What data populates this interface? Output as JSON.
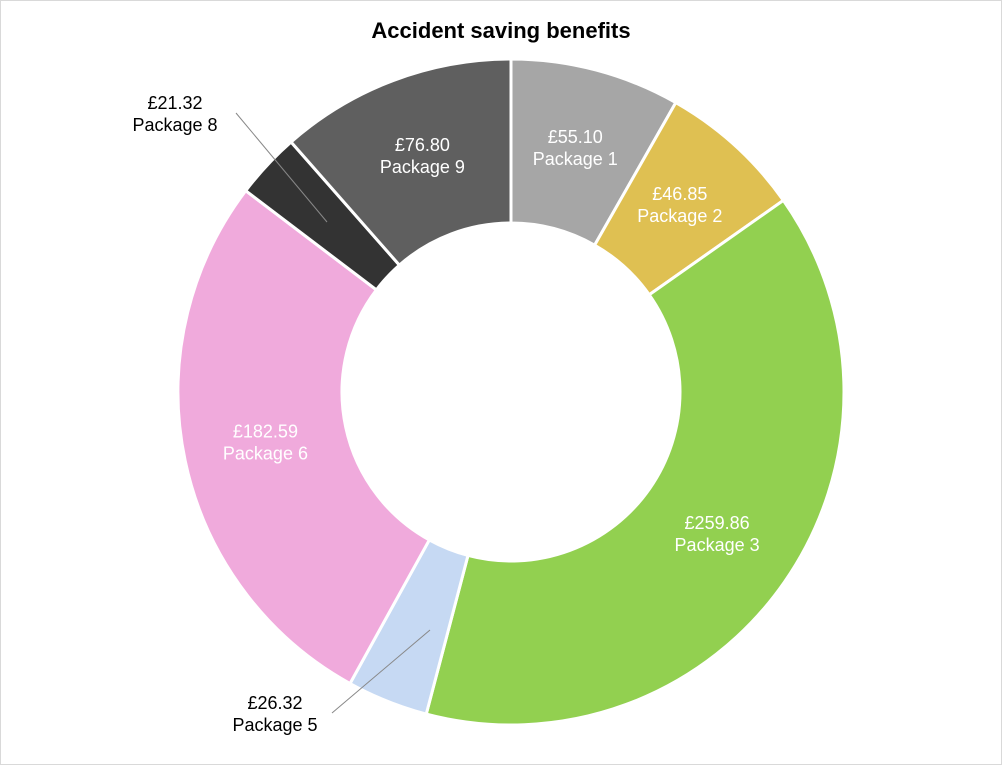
{
  "chart_data": {
    "type": "donut",
    "title": "Accident saving benefits",
    "categories": [
      "Package 1",
      "Package 2",
      "Package 3",
      "Package 5",
      "Package 6",
      "Package 8",
      "Package 9"
    ],
    "values": [
      55.1,
      46.85,
      259.86,
      26.32,
      182.59,
      21.32,
      76.8
    ],
    "value_labels": [
      "£55.10",
      "£46.85",
      "£259.86",
      "£26.32",
      "£182.59",
      "£21.32",
      "£76.80"
    ],
    "colors": [
      "#a6a6a6",
      "#dfc052",
      "#92d050",
      "#c6d9f3",
      "#f0aadc",
      "#333333",
      "#5f5f5f"
    ]
  }
}
